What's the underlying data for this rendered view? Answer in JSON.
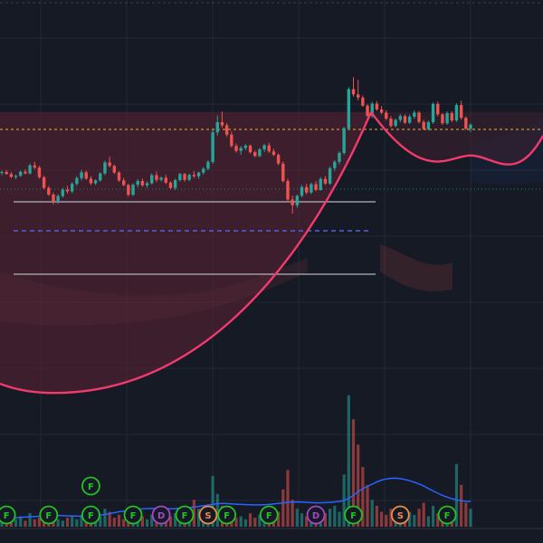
{
  "colors": {
    "background": "#161a25",
    "grid": "#232838",
    "up": "#26a69a",
    "down": "#ef5350",
    "cup_pattern": "#f23a6c",
    "cup_fill": "#5c2335",
    "price_line": "#f0b23c",
    "median_line": "#5b5fd8",
    "range_line": "#b2b5be",
    "volume_ma": "#2962ff",
    "marker_F": "#22c322",
    "marker_D": "#a347c7",
    "marker_S": "#f28a4a"
  },
  "chart_data": {
    "type": "candlestick",
    "title": "",
    "price_range": [
      0,
      100
    ],
    "grid": true,
    "candles": [
      [
        70.0,
        70.8,
        69.2,
        70.3
      ],
      [
        70.3,
        71.0,
        69.4,
        69.6
      ],
      [
        69.6,
        70.2,
        68.2,
        68.6
      ],
      [
        68.6,
        69.4,
        67.8,
        69.0
      ],
      [
        69.0,
        70.8,
        68.6,
        70.4
      ],
      [
        70.4,
        71.2,
        69.5,
        69.8
      ],
      [
        69.8,
        73.2,
        69.4,
        72.6
      ],
      [
        72.6,
        73.8,
        71.2,
        71.8
      ],
      [
        71.8,
        72.4,
        68.0,
        68.5
      ],
      [
        68.5,
        69.0,
        64.2,
        64.8
      ],
      [
        64.8,
        65.5,
        62.0,
        62.5
      ],
      [
        62.5,
        63.2,
        59.0,
        60.0
      ],
      [
        60.0,
        62.6,
        59.3,
        62.0
      ],
      [
        62.0,
        64.8,
        61.4,
        64.2
      ],
      [
        64.2,
        65.5,
        62.8,
        63.6
      ],
      [
        63.6,
        66.8,
        63.0,
        66.2
      ],
      [
        66.2,
        68.8,
        65.5,
        68.2
      ],
      [
        68.2,
        71.0,
        67.4,
        70.2
      ],
      [
        70.2,
        70.8,
        67.6,
        68.0
      ],
      [
        68.0,
        68.9,
        65.8,
        66.4
      ],
      [
        66.4,
        67.8,
        65.8,
        67.4
      ],
      [
        67.4,
        70.2,
        67.0,
        69.8
      ],
      [
        69.8,
        74.2,
        69.2,
        73.6
      ],
      [
        73.6,
        75.6,
        71.9,
        72.4
      ],
      [
        72.4,
        72.8,
        69.6,
        70.1
      ],
      [
        70.1,
        70.6,
        66.9,
        67.4
      ],
      [
        67.4,
        68.3,
        65.3,
        65.8
      ],
      [
        65.8,
        66.2,
        61.8,
        62.4
      ],
      [
        62.4,
        66.4,
        62.0,
        65.9
      ],
      [
        65.9,
        67.8,
        65.0,
        67.2
      ],
      [
        67.2,
        68.0,
        65.2,
        65.7
      ],
      [
        65.7,
        67.1,
        64.8,
        66.4
      ],
      [
        66.4,
        69.8,
        66.0,
        69.2
      ],
      [
        69.2,
        70.4,
        66.8,
        67.6
      ],
      [
        67.6,
        68.8,
        67.0,
        68.3
      ],
      [
        68.3,
        69.3,
        66.1,
        66.6
      ],
      [
        66.6,
        67.1,
        64.3,
        64.8
      ],
      [
        64.8,
        68.0,
        64.1,
        67.5
      ],
      [
        67.5,
        70.0,
        67.0,
        69.6
      ],
      [
        69.6,
        70.0,
        66.9,
        67.6
      ],
      [
        67.6,
        69.8,
        67.1,
        69.3
      ],
      [
        69.3,
        70.6,
        68.2,
        68.8
      ],
      [
        68.8,
        70.4,
        67.9,
        70.1
      ],
      [
        70.1,
        72.0,
        69.4,
        71.4
      ],
      [
        71.4,
        74.4,
        70.8,
        73.8
      ],
      [
        73.8,
        84.8,
        73.1,
        84.0
      ],
      [
        84.0,
        89.8,
        82.9,
        87.5
      ],
      [
        87.5,
        91.2,
        85.6,
        86.4
      ],
      [
        86.4,
        87.2,
        82.4,
        83.2
      ],
      [
        83.2,
        84.3,
        78.7,
        79.3
      ],
      [
        79.3,
        80.1,
        77.0,
        77.6
      ],
      [
        77.6,
        79.2,
        76.2,
        78.6
      ],
      [
        78.6,
        80.0,
        77.9,
        79.4
      ],
      [
        79.4,
        79.8,
        76.7,
        77.1
      ],
      [
        77.1,
        77.7,
        75.4,
        75.8
      ],
      [
        75.8,
        78.6,
        75.4,
        78.1
      ],
      [
        78.1,
        80.0,
        77.2,
        79.5
      ],
      [
        79.5,
        80.4,
        76.9,
        77.4
      ],
      [
        77.4,
        78.3,
        75.8,
        76.2
      ],
      [
        76.2,
        76.8,
        72.6,
        73.2
      ],
      [
        73.2,
        74.0,
        66.6,
        67.2
      ],
      [
        67.2,
        68.0,
        59.9,
        60.8
      ],
      [
        60.8,
        62.2,
        55.9,
        58.8
      ],
      [
        58.8,
        62.5,
        57.9,
        62.1
      ],
      [
        62.1,
        65.8,
        61.5,
        65.1
      ],
      [
        65.1,
        66.2,
        62.6,
        63.2
      ],
      [
        63.2,
        66.6,
        62.7,
        66.1
      ],
      [
        66.1,
        67.2,
        63.6,
        64.1
      ],
      [
        64.1,
        68.5,
        63.8,
        67.9
      ],
      [
        67.9,
        68.9,
        65.8,
        66.3
      ],
      [
        66.3,
        72.2,
        65.9,
        71.6
      ],
      [
        71.6,
        74.4,
        70.6,
        73.8
      ],
      [
        73.8,
        77.4,
        73.0,
        76.9
      ],
      [
        76.9,
        85.9,
        76.2,
        85.4
      ],
      [
        85.4,
        99.6,
        84.8,
        98.9
      ],
      [
        98.9,
        103.0,
        96.3,
        97.1
      ],
      [
        97.1,
        102.1,
        95.0,
        96.0
      ],
      [
        96.0,
        96.7,
        92.8,
        93.2
      ],
      [
        93.2,
        93.8,
        89.3,
        89.7
      ],
      [
        89.7,
        94.5,
        88.9,
        93.9
      ],
      [
        93.9,
        94.8,
        91.4,
        91.9
      ],
      [
        91.9,
        93.1,
        90.2,
        90.8
      ],
      [
        90.8,
        91.6,
        88.2,
        88.7
      ],
      [
        88.7,
        89.5,
        85.6,
        86.2
      ],
      [
        86.2,
        88.8,
        85.7,
        88.3
      ],
      [
        88.3,
        90.3,
        87.5,
        89.6
      ],
      [
        89.6,
        90.2,
        86.8,
        87.3
      ],
      [
        87.3,
        90.1,
        86.8,
        89.4
      ],
      [
        89.4,
        91.6,
        88.6,
        90.8
      ],
      [
        90.8,
        91.4,
        87.1,
        87.6
      ],
      [
        87.6,
        88.3,
        84.7,
        85.1
      ],
      [
        85.1,
        88.1,
        84.6,
        87.5
      ],
      [
        87.5,
        94.3,
        86.9,
        93.8
      ],
      [
        93.8,
        94.6,
        89.5,
        90.2
      ],
      [
        90.2,
        90.6,
        86.6,
        87.1
      ],
      [
        87.1,
        91.2,
        86.6,
        90.6
      ],
      [
        90.6,
        91.3,
        87.5,
        88.1
      ],
      [
        88.1,
        94.0,
        87.6,
        93.4
      ],
      [
        93.4,
        94.9,
        88.4,
        89.0
      ],
      [
        89.0,
        89.5,
        84.8,
        85.2
      ],
      [
        85.2,
        87.1,
        84.1,
        86.6
      ]
    ],
    "volume": [
      6,
      4,
      8,
      5,
      7,
      4,
      9,
      5,
      6,
      11,
      8,
      10,
      5,
      4,
      6,
      7,
      5,
      8,
      9,
      6,
      4,
      7,
      12,
      10,
      6,
      8,
      5,
      9,
      4,
      6,
      7,
      5,
      8,
      4,
      6,
      5,
      7,
      9,
      6,
      4,
      8,
      18,
      12,
      6,
      9,
      34,
      22,
      14,
      10,
      8,
      6,
      7,
      5,
      9,
      6,
      8,
      12,
      7,
      5,
      10,
      25,
      38,
      18,
      12,
      9,
      7,
      11,
      8,
      6,
      9,
      12,
      14,
      10,
      35,
      88,
      72,
      55,
      40,
      28,
      18,
      14,
      10,
      8,
      12,
      9,
      7,
      6,
      10,
      8,
      12,
      16,
      7,
      14,
      9,
      6,
      8,
      10,
      42,
      28,
      16,
      12
    ],
    "volume_ma": [
      6,
      6,
      6,
      6,
      6.2,
      6.4,
      6.6,
      6.8,
      7,
      7.2,
      7.4,
      7.6,
      7.5,
      7.4,
      7.3,
      7.2,
      7.1,
      7,
      7.1,
      7.3,
      7.5,
      7.8,
      8.2,
      8.8,
      9.4,
      10,
      10.5,
      11,
      11.4,
      11.7,
      12,
      12.1,
      12.2,
      12.3,
      12.2,
      12.1,
      12,
      12.1,
      12.3,
      12.5,
      12.8,
      13.2,
      13.6,
      14,
      14.5,
      15,
      15.4,
      15.6,
      15.5,
      15.3,
      15.1,
      14.9,
      14.8,
      14.7,
      14.6,
      14.6,
      14.7,
      14.9,
      15.2,
      15.6,
      16,
      16.3,
      16.5,
      16.6,
      16.5,
      16.3,
      16.1,
      16,
      16,
      16.1,
      16.3,
      16.6,
      17,
      17.6,
      19,
      21,
      23.5,
      25.5,
      27,
      28.5,
      30,
      31.2,
      32,
      32.4,
      32.5,
      32.2,
      31.6,
      30.8,
      29.8,
      28.6,
      27.2,
      25.6,
      24,
      22.4,
      21,
      19.8,
      18.8,
      18,
      17.4,
      17,
      16.8
    ],
    "levels": {
      "high_line": 85,
      "median_line": 50,
      "range_upper": 60,
      "range_lower": 35
    },
    "cup": {
      "left_rim": 91,
      "bottom": -6,
      "right_bottom": 76
    },
    "markers": [
      {
        "label": "F",
        "index": 1
      },
      {
        "label": "F",
        "index": 10
      },
      {
        "label": "F",
        "index": 19
      },
      {
        "label": "F",
        "index": 19,
        "raised": true
      },
      {
        "label": "F",
        "index": 28
      },
      {
        "label": "D",
        "index": 34
      },
      {
        "label": "F",
        "index": 39
      },
      {
        "label": "S",
        "index": 44
      },
      {
        "label": "F",
        "index": 48
      },
      {
        "label": "F",
        "index": 57
      },
      {
        "label": "D",
        "index": 67
      },
      {
        "label": "F",
        "index": 75
      },
      {
        "label": "S",
        "index": 85
      },
      {
        "label": "F",
        "index": 95
      }
    ]
  }
}
